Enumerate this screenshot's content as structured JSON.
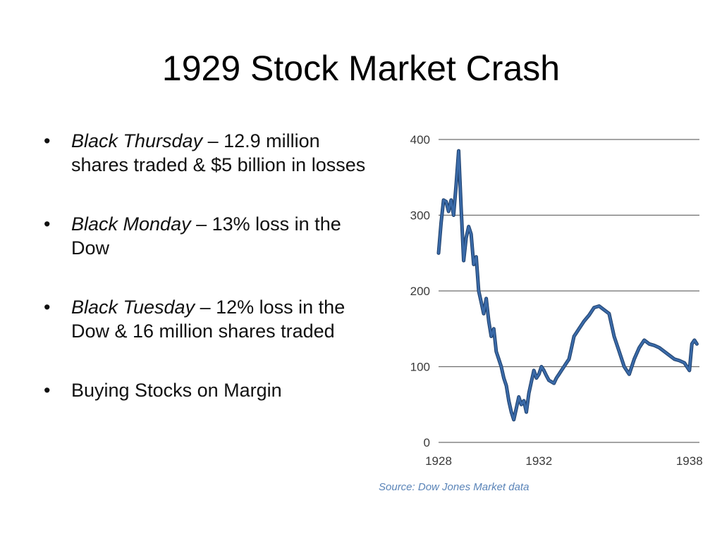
{
  "slide": {
    "title": "1929 Stock Market Crash",
    "bullets": [
      {
        "emphasis": "Black Thursday",
        "text": " – 12.9 million shares traded & $5 billion in losses"
      },
      {
        "emphasis": "Black Monday",
        "text": " – 13% loss in the Dow"
      },
      {
        "emphasis": "Black Tuesday",
        "text": " – 12% loss in the Dow & 16 million shares traded"
      },
      {
        "emphasis": "",
        "text": "Buying Stocks on Margin"
      }
    ],
    "bullet_glyph": "•"
  },
  "chart_data": {
    "type": "line",
    "title": "",
    "xlabel": "",
    "ylabel": "",
    "xlim": [
      1928,
      1938.4
    ],
    "ylim": [
      0,
      400
    ],
    "yticks": [
      "400",
      "300",
      "200",
      "100",
      "0"
    ],
    "yticks_values": [
      400,
      300,
      200,
      100,
      0
    ],
    "xticks": [
      "1928",
      "1932",
      "1938"
    ],
    "xticks_values": [
      1928,
      1932,
      1938
    ],
    "grid": "horizontal",
    "line_color": "#3a6aa8",
    "source": "Source:  Dow Jones Market data",
    "series": [
      {
        "x": [
          1928.0,
          1928.1,
          1928.2,
          1928.3,
          1928.4,
          1928.5,
          1928.6,
          1928.7,
          1928.8,
          1928.9,
          1929.0,
          1929.1,
          1929.2,
          1929.3,
          1929.4,
          1929.5,
          1929.6,
          1929.7,
          1929.8,
          1929.9,
          1930.0,
          1930.1,
          1930.2,
          1930.3,
          1930.4,
          1930.5,
          1930.6,
          1930.7,
          1930.8,
          1930.9,
          1931.0,
          1931.1,
          1931.2,
          1931.3,
          1931.4,
          1931.5,
          1931.6,
          1931.7,
          1931.8,
          1931.9,
          1932.0,
          1932.1,
          1932.2,
          1932.3,
          1932.4,
          1932.5,
          1932.6,
          1932.7,
          1932.8,
          1932.9,
          1933.0,
          1933.1,
          1933.2,
          1933.3,
          1933.4,
          1933.5,
          1933.6,
          1933.8,
          1934.0,
          1934.2,
          1934.4,
          1934.6,
          1934.8,
          1935.0,
          1935.2,
          1935.4,
          1935.6,
          1935.8,
          1936.0,
          1936.2,
          1936.4,
          1936.6,
          1936.8,
          1937.0,
          1937.2,
          1937.4,
          1937.6,
          1937.8,
          1937.9,
          1938.0,
          1938.1,
          1938.2,
          1938.3
        ],
        "y": [
          250,
          290,
          320,
          318,
          305,
          320,
          300,
          340,
          385,
          310,
          240,
          270,
          285,
          275,
          235,
          245,
          200,
          185,
          170,
          190,
          160,
          140,
          150,
          120,
          110,
          100,
          85,
          75,
          55,
          40,
          30,
          45,
          60,
          50,
          55,
          40,
          65,
          80,
          95,
          85,
          90,
          100,
          95,
          88,
          82,
          80,
          78,
          85,
          90,
          95,
          100,
          105,
          110,
          125,
          140,
          145,
          150,
          160,
          168,
          178,
          180,
          175,
          170,
          140,
          120,
          100,
          90,
          110,
          125,
          135,
          130,
          128,
          125,
          120,
          115,
          110,
          108,
          105,
          100,
          95,
          130,
          135,
          130
        ]
      }
    ]
  }
}
